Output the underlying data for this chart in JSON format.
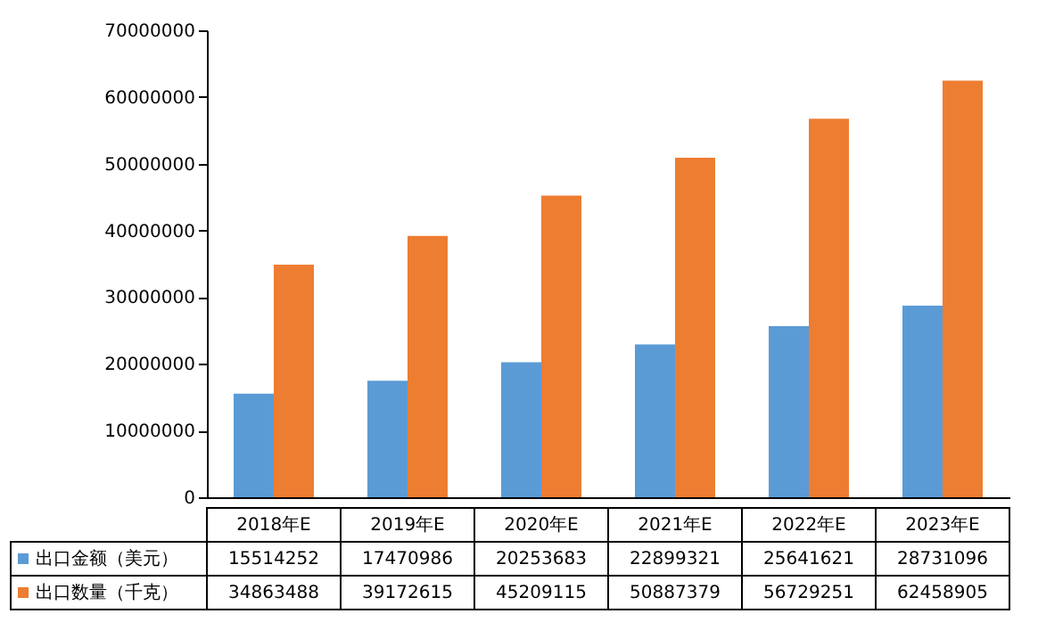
{
  "chart_data": {
    "type": "bar",
    "categories": [
      "2018年E",
      "2019年E",
      "2020年E",
      "2021年E",
      "2022年E",
      "2023年E"
    ],
    "series": [
      {
        "name": "出口金额（美元）",
        "color": "#5b9bd5",
        "values": [
          15514252,
          17470986,
          20253683,
          22899321,
          25641621,
          28731096
        ]
      },
      {
        "name": "出口数量（千克）",
        "color": "#ed7d31",
        "values": [
          34863488,
          39172615,
          45209115,
          50887379,
          56729251,
          62458905
        ]
      }
    ],
    "ylim": [
      0,
      70000000
    ],
    "yticks": [
      0,
      10000000,
      20000000,
      30000000,
      40000000,
      50000000,
      60000000,
      70000000
    ],
    "data_labels": true,
    "legend": "bottom"
  }
}
